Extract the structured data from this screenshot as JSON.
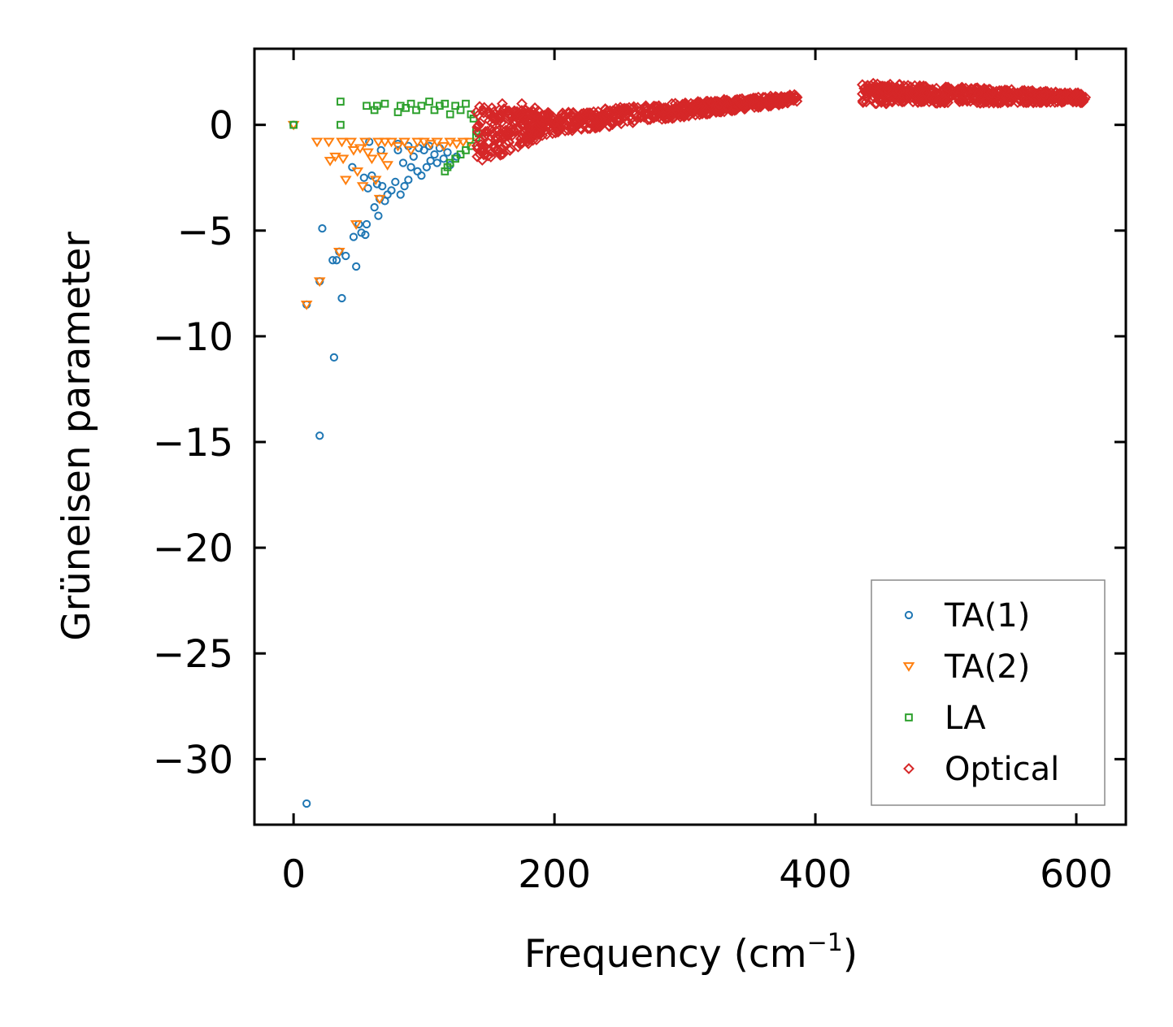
{
  "chart_data": {
    "type": "scatter",
    "title": "",
    "xlabel": "Frequency (cm",
    "xlabel_sup": "−1",
    "xlabel_tail": ")",
    "ylabel": "Grüneisen parameter",
    "xlim": [
      -30,
      638
    ],
    "ylim": [
      -33.1,
      3.6
    ],
    "xticks": [
      0,
      200,
      400,
      600
    ],
    "xtick_labels": [
      "0",
      "200",
      "400",
      "600"
    ],
    "yticks": [
      0,
      -5,
      -10,
      -15,
      -20,
      -25,
      -30
    ],
    "ytick_labels": [
      "0",
      "−5",
      "−10",
      "−15",
      "−20",
      "−25",
      "−30"
    ],
    "grid": false,
    "legend_position": "bottom-right",
    "series": [
      {
        "name": "TA(1)",
        "marker": "circle",
        "color": "#1f77b4",
        "points": [
          [
            0,
            0
          ],
          [
            10,
            -32.1
          ],
          [
            10,
            -8.5
          ],
          [
            20,
            -14.7
          ],
          [
            20,
            -7.4
          ],
          [
            22,
            -4.9
          ],
          [
            30,
            -6.4
          ],
          [
            31,
            -11
          ],
          [
            33,
            -6.4
          ],
          [
            35,
            -6.0
          ],
          [
            37,
            -8.2
          ],
          [
            40,
            -6.2
          ],
          [
            45,
            -2.0
          ],
          [
            46,
            -5.3
          ],
          [
            48,
            -6.7
          ],
          [
            50,
            -4.7
          ],
          [
            52,
            -5.1
          ],
          [
            54,
            -2.5
          ],
          [
            55,
            -5.2
          ],
          [
            56,
            -4.7
          ],
          [
            57,
            -3.0
          ],
          [
            58,
            -0.8
          ],
          [
            60,
            -2.4
          ],
          [
            62,
            -3.9
          ],
          [
            64,
            -2.8
          ],
          [
            65,
            -4.3
          ],
          [
            66,
            -3.5
          ],
          [
            67,
            -1.2
          ],
          [
            68,
            -2.9
          ],
          [
            70,
            -3.6
          ],
          [
            72,
            -3.3
          ],
          [
            75,
            -3.1
          ],
          [
            78,
            -2.7
          ],
          [
            80,
            -1.2
          ],
          [
            82,
            -3.3
          ],
          [
            84,
            -1.8
          ],
          [
            85,
            -2.9
          ],
          [
            88,
            -2.6
          ],
          [
            90,
            -2.0
          ],
          [
            92,
            -1.5
          ],
          [
            95,
            -2.2
          ],
          [
            98,
            -2.4
          ],
          [
            100,
            -1.2
          ],
          [
            102,
            -2.0
          ],
          [
            105,
            -1.7
          ],
          [
            108,
            -1.4
          ],
          [
            110,
            -1.8
          ],
          [
            112,
            -1.1
          ],
          [
            115,
            -1.6
          ],
          [
            118,
            -1.3
          ],
          [
            120,
            -1.9
          ],
          [
            125,
            -1.5
          ],
          [
            80,
            -0.9
          ],
          [
            88,
            -1.0
          ],
          [
            96,
            -1.1
          ],
          [
            104,
            -1.0
          ]
        ]
      },
      {
        "name": "TA(2)",
        "marker": "triangle-down",
        "color": "#ff7f0e",
        "points": [
          [
            0,
            0
          ],
          [
            10,
            -8.5
          ],
          [
            20,
            -7.4
          ],
          [
            18,
            -0.8
          ],
          [
            27,
            -0.8
          ],
          [
            28,
            -1.7
          ],
          [
            32,
            -1.5
          ],
          [
            35,
            -6.0
          ],
          [
            37,
            -0.8
          ],
          [
            38,
            -1.6
          ],
          [
            40,
            -2.6
          ],
          [
            44,
            -0.8
          ],
          [
            46,
            -1.2
          ],
          [
            48,
            -4.7
          ],
          [
            49,
            -2.2
          ],
          [
            51,
            -1.1
          ],
          [
            53,
            -2.9
          ],
          [
            55,
            -0.8
          ],
          [
            57,
            -1.3
          ],
          [
            60,
            -1.6
          ],
          [
            63,
            -2.6
          ],
          [
            65,
            -0.8
          ],
          [
            66,
            -3.5
          ],
          [
            68,
            -1.5
          ],
          [
            70,
            -0.8
          ],
          [
            72,
            -1.9
          ],
          [
            75,
            -0.8
          ],
          [
            80,
            -1.0
          ],
          [
            85,
            -0.8
          ],
          [
            90,
            -1.2
          ],
          [
            95,
            -0.8
          ],
          [
            100,
            -0.8
          ],
          [
            105,
            -0.9
          ],
          [
            110,
            -0.8
          ],
          [
            115,
            -1.0
          ],
          [
            120,
            -0.8
          ],
          [
            125,
            -0.9
          ],
          [
            130,
            -0.8
          ],
          [
            135,
            -0.8
          ]
        ]
      },
      {
        "name": "LA",
        "marker": "square",
        "color": "#2ca02c",
        "points": [
          [
            0,
            0
          ],
          [
            36,
            1.1
          ],
          [
            36,
            0
          ],
          [
            56,
            0.9
          ],
          [
            62,
            0.7
          ],
          [
            64,
            0.9
          ],
          [
            70,
            1.0
          ],
          [
            80,
            0.6
          ],
          [
            82,
            0.9
          ],
          [
            86,
            0.8
          ],
          [
            90,
            1.0
          ],
          [
            94,
            0.7
          ],
          [
            98,
            0.9
          ],
          [
            104,
            1.1
          ],
          [
            108,
            0.7
          ],
          [
            112,
            0.9
          ],
          [
            116,
            1.0
          ],
          [
            120,
            0.5
          ],
          [
            124,
            0.9
          ],
          [
            128,
            0.7
          ],
          [
            132,
            1.0
          ],
          [
            136,
            0.5
          ],
          [
            138,
            0.3
          ],
          [
            140,
            -0.3
          ],
          [
            116,
            -2.2
          ],
          [
            118,
            -2.0
          ],
          [
            120,
            -1.8
          ],
          [
            124,
            -1.6
          ],
          [
            128,
            -1.4
          ],
          [
            132,
            -1.2
          ],
          [
            136,
            -1.0
          ],
          [
            140,
            -0.6
          ],
          [
            142,
            -0.4
          ]
        ]
      },
      {
        "name": "Optical",
        "marker": "diamond",
        "color": "#d62728",
        "points": [
          [
            140,
            0.6
          ],
          [
            145,
            -1.2
          ],
          [
            150,
            0.2
          ],
          [
            152,
            0.8
          ],
          [
            155,
            -0.6
          ],
          [
            158,
            0.5
          ],
          [
            160,
            1.0
          ],
          [
            165,
            -0.8
          ],
          [
            170,
            0.2
          ],
          [
            175,
            1.0
          ],
          [
            180,
            -0.4
          ],
          [
            185,
            0.8
          ],
          [
            190,
            0.2
          ],
          [
            195,
            0.4
          ],
          [
            200,
            0.1
          ],
          [
            210,
            0.2
          ],
          [
            220,
            0.3
          ],
          [
            230,
            0.4
          ],
          [
            240,
            0.6
          ],
          [
            250,
            0.7
          ],
          [
            260,
            0.8
          ],
          [
            270,
            0.9
          ],
          [
            280,
            0.9
          ],
          [
            290,
            1.0
          ],
          [
            300,
            1.0
          ],
          [
            310,
            1.1
          ],
          [
            320,
            1.1
          ],
          [
            330,
            1.2
          ],
          [
            340,
            1.2
          ],
          [
            350,
            1.2
          ],
          [
            360,
            1.3
          ],
          [
            370,
            1.3
          ],
          [
            380,
            1.3
          ],
          [
            386,
            1.3
          ],
          [
            436,
            1.9
          ],
          [
            445,
            1.8
          ],
          [
            455,
            1.7
          ],
          [
            465,
            1.6
          ],
          [
            475,
            1.5
          ],
          [
            485,
            1.5
          ],
          [
            495,
            1.5
          ],
          [
            505,
            1.4
          ],
          [
            515,
            1.6
          ],
          [
            525,
            1.5
          ],
          [
            535,
            1.5
          ],
          [
            545,
            1.6
          ],
          [
            555,
            1.5
          ],
          [
            565,
            1.4
          ],
          [
            575,
            1.4
          ],
          [
            585,
            1.3
          ],
          [
            595,
            1.3
          ],
          [
            607,
            1.3
          ]
        ],
        "bands": [
          {
            "x0": 140,
            "x1": 200,
            "y_lo": [
              -1.9,
              -0.4
            ],
            "y_hi": [
              0.9,
              0.6
            ],
            "count": 220
          },
          {
            "x0": 200,
            "x1": 386,
            "y_lo": [
              -0.4,
              1.05
            ],
            "y_hi": [
              0.6,
              1.45
            ],
            "count": 520
          },
          {
            "x0": 436,
            "x1": 607,
            "y_lo": [
              1.0,
              1.05
            ],
            "y_hi": [
              2.0,
              1.5
            ],
            "count": 520
          }
        ]
      }
    ]
  }
}
